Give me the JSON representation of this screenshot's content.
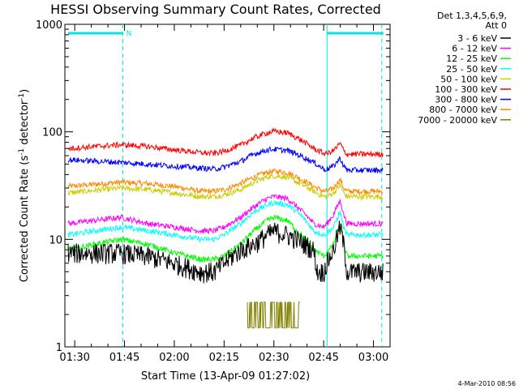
{
  "chart_data": {
    "type": "line",
    "title": "HESSI Observing Summary Count Rates, Corrected",
    "xlabel": "Start Time (13-Apr-09 01:27:02)",
    "ylabel": "Corrected Count Rate (s^-1 detector^-1)",
    "ylabel_parts": [
      "Corrected Count Rate (s",
      "-1",
      " detector",
      "-1",
      ")"
    ],
    "y_scale": "log",
    "ylim": [
      1,
      1000
    ],
    "y_ticks": [
      1,
      10,
      100,
      1000
    ],
    "y_tick_labels": [
      "1",
      "10",
      "100",
      "1000"
    ],
    "xlim_minutes": [
      87.03,
      185.0
    ],
    "x_ticks": [
      "01:30",
      "01:45",
      "02:00",
      "02:15",
      "02:30",
      "02:45",
      "03:00"
    ],
    "x_tick_minutes": [
      90,
      105,
      120,
      135,
      150,
      165,
      180
    ],
    "legend_position": "right, outside plot",
    "legend_header": [
      "Det 1,3,4,5,6,9,",
      "Att 0"
    ],
    "series": [
      {
        "name": "3 - 6 keV",
        "color": "#000000",
        "x_minutes": [
          88,
          104,
          112,
          120,
          128,
          132,
          135,
          140,
          144,
          148,
          150,
          154,
          157,
          162,
          163,
          165,
          166,
          168,
          170,
          171,
          172,
          175,
          180,
          183
        ],
        "values": [
          7.5,
          7.5,
          7,
          6,
          5,
          5,
          6,
          8,
          9,
          11,
          12,
          11,
          10,
          8,
          5,
          5,
          6,
          8,
          13,
          9,
          5,
          5,
          5,
          5
        ]
      },
      {
        "name": "6 - 12 keV",
        "color": "#ff00ff",
        "x_minutes": [
          88,
          104,
          112,
          120,
          128,
          132,
          135,
          140,
          144,
          148,
          150,
          154,
          157,
          162,
          165,
          166,
          168,
          170,
          171,
          172,
          175,
          180,
          183
        ],
        "values": [
          14,
          16,
          14,
          13,
          12,
          12,
          13,
          16,
          20,
          24,
          25,
          24,
          20,
          14,
          13,
          14,
          17,
          23,
          17,
          14,
          14,
          14,
          14
        ]
      },
      {
        "name": "12 - 25 keV",
        "color": "#00ff00",
        "x_minutes": [
          88,
          104,
          112,
          120,
          128,
          132,
          135,
          140,
          144,
          148,
          150,
          154,
          157,
          162,
          165,
          166,
          168,
          170,
          171,
          172,
          175,
          180,
          183
        ],
        "values": [
          8,
          10,
          9,
          7.5,
          6.5,
          6.5,
          7,
          9,
          12,
          15,
          16,
          15,
          12,
          8,
          7,
          7.5,
          9,
          14,
          9,
          7,
          7,
          7,
          7
        ]
      },
      {
        "name": "25 - 50 keV",
        "color": "#00ffff",
        "x_minutes": [
          88,
          104,
          112,
          120,
          128,
          132,
          135,
          140,
          144,
          148,
          150,
          154,
          157,
          162,
          165,
          166,
          168,
          170,
          171,
          172,
          175,
          180,
          183
        ],
        "values": [
          11,
          13,
          12,
          11,
          10,
          10,
          11,
          14,
          18,
          21,
          22,
          21,
          18,
          12,
          11,
          11.5,
          13,
          18,
          13,
          11,
          11,
          11,
          11
        ]
      },
      {
        "name": "50 - 100 keV",
        "color": "#cccc00",
        "x_minutes": [
          88,
          104,
          112,
          120,
          128,
          132,
          135,
          140,
          144,
          148,
          150,
          154,
          157,
          162,
          165,
          166,
          168,
          170,
          171,
          172,
          175,
          180,
          183
        ],
        "values": [
          27,
          30,
          29,
          27,
          25,
          25,
          26,
          29,
          34,
          38,
          39,
          38,
          34,
          28,
          25,
          25,
          27,
          32,
          27,
          25,
          25,
          25,
          25
        ]
      },
      {
        "name": "100 - 300 keV",
        "color": "#ff0000",
        "x_minutes": [
          88,
          104,
          112,
          120,
          128,
          132,
          135,
          140,
          144,
          148,
          150,
          154,
          157,
          162,
          165,
          166,
          168,
          170,
          171,
          172,
          175,
          180,
          183
        ],
        "values": [
          70,
          76,
          73,
          68,
          64,
          63,
          66,
          75,
          88,
          98,
          101,
          98,
          88,
          70,
          63,
          63,
          67,
          78,
          67,
          62,
          62,
          62,
          62
        ]
      },
      {
        "name": "300 - 800 keV",
        "color": "#0000ff",
        "x_minutes": [
          88,
          104,
          112,
          120,
          128,
          132,
          135,
          140,
          144,
          148,
          150,
          154,
          157,
          162,
          165,
          166,
          168,
          170,
          171,
          172,
          175,
          180,
          183
        ],
        "values": [
          55,
          52,
          50,
          48,
          46,
          45,
          47,
          53,
          62,
          68,
          69,
          67,
          62,
          52,
          45,
          45,
          48,
          57,
          48,
          44,
          44,
          44,
          44
        ]
      },
      {
        "name": "800 - 7000 keV",
        "color": "#ff8800",
        "x_minutes": [
          88,
          104,
          112,
          120,
          128,
          132,
          135,
          140,
          144,
          148,
          150,
          154,
          157,
          162,
          165,
          166,
          168,
          170,
          171,
          172,
          175,
          180,
          183
        ],
        "values": [
          31,
          34,
          33,
          31,
          28,
          28,
          29,
          33,
          38,
          42,
          43,
          42,
          38,
          31,
          28,
          28,
          30,
          36,
          30,
          28,
          28,
          28,
          28
        ]
      },
      {
        "name": "7000 - 20000 keV",
        "color": "#808000",
        "x_minutes": [
          142,
          143,
          144,
          146,
          148,
          150,
          152,
          154,
          156,
          157,
          158
        ],
        "values": [
          1.5,
          2.5,
          1.5,
          2.5,
          1.5,
          2.5,
          1.5,
          2.5,
          1.5,
          2.5,
          1.5
        ]
      }
    ],
    "annotations": [
      {
        "text": "N",
        "x_minutes": 105.5
      },
      {
        "type": "orbit-bar",
        "x_minutes": [
          88,
          104.5
        ],
        "y": 800
      },
      {
        "type": "orbit-bar",
        "x_minutes": [
          166,
          183
        ],
        "y": 800
      },
      {
        "type": "vertical-dashed",
        "x_minutes": [
          104.5,
          182.5
        ]
      },
      {
        "type": "vertical-solid",
        "x_minutes": [
          166
        ]
      }
    ]
  },
  "footer": {
    "timestamp": "4-Mar-2010 08:56"
  }
}
